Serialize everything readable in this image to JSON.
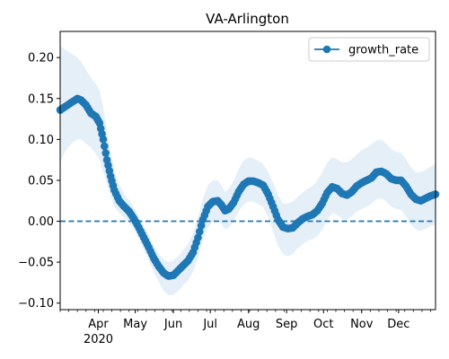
{
  "chart_data": {
    "type": "line",
    "title": "VA-Arlington",
    "xlabel": "",
    "ylabel": "",
    "x_range": [
      "2020-03-01",
      "2020-12-31"
    ],
    "ylim": [
      -0.108,
      0.232
    ],
    "y_ticks": [
      -0.1,
      -0.05,
      0.0,
      0.05,
      0.1,
      0.15,
      0.2
    ],
    "y_tick_labels": [
      "−0.10",
      "−0.05",
      "0.00",
      "0.05",
      "0.10",
      "0.15",
      "0.20"
    ],
    "x_ticks": [
      {
        "date": "2020-04-01",
        "label": "Apr"
      },
      {
        "date": "2020-05-01",
        "label": "May"
      },
      {
        "date": "2020-06-01",
        "label": "Jun"
      },
      {
        "date": "2020-07-01",
        "label": "Jul"
      },
      {
        "date": "2020-08-01",
        "label": "Aug"
      },
      {
        "date": "2020-09-01",
        "label": "Sep"
      },
      {
        "date": "2020-10-01",
        "label": "Oct"
      },
      {
        "date": "2020-11-01",
        "label": "Nov"
      },
      {
        "date": "2020-12-01",
        "label": "Dec"
      }
    ],
    "x_year_label": "2020",
    "grid": false,
    "legend_position": "top-right",
    "reference_line": {
      "y": 0.0,
      "style": "dashed"
    },
    "series": [
      {
        "name": "growth_rate",
        "color": "#1f77b4",
        "band_color": "#dce9f6",
        "marker": "circle",
        "points": [
          {
            "x": "2020-03-01",
            "y": 0.136,
            "lo": 0.072,
            "hi": 0.215
          },
          {
            "x": "2020-03-05",
            "y": 0.14,
            "lo": 0.085,
            "hi": 0.21
          },
          {
            "x": "2020-03-10",
            "y": 0.145,
            "lo": 0.095,
            "hi": 0.205
          },
          {
            "x": "2020-03-15",
            "y": 0.15,
            "lo": 0.1,
            "hi": 0.2
          },
          {
            "x": "2020-03-18",
            "y": 0.148,
            "lo": 0.1,
            "hi": 0.195
          },
          {
            "x": "2020-03-22",
            "y": 0.142,
            "lo": 0.095,
            "hi": 0.185
          },
          {
            "x": "2020-03-26",
            "y": 0.132,
            "lo": 0.09,
            "hi": 0.175
          },
          {
            "x": "2020-03-30",
            "y": 0.128,
            "lo": 0.082,
            "hi": 0.168
          },
          {
            "x": "2020-04-02",
            "y": 0.12,
            "lo": 0.075,
            "hi": 0.16
          },
          {
            "x": "2020-04-05",
            "y": 0.1,
            "lo": 0.06,
            "hi": 0.14
          },
          {
            "x": "2020-04-08",
            "y": 0.075,
            "lo": 0.045,
            "hi": 0.11
          },
          {
            "x": "2020-04-11",
            "y": 0.055,
            "lo": 0.03,
            "hi": 0.085
          },
          {
            "x": "2020-04-14",
            "y": 0.038,
            "lo": 0.018,
            "hi": 0.062
          },
          {
            "x": "2020-04-18",
            "y": 0.025,
            "lo": 0.01,
            "hi": 0.045
          },
          {
            "x": "2020-04-22",
            "y": 0.018,
            "lo": 0.004,
            "hi": 0.034
          },
          {
            "x": "2020-04-26",
            "y": 0.012,
            "lo": -0.002,
            "hi": 0.026
          },
          {
            "x": "2020-04-30",
            "y": 0.003,
            "lo": -0.01,
            "hi": 0.017
          },
          {
            "x": "2020-05-04",
            "y": -0.008,
            "lo": -0.022,
            "hi": 0.006
          },
          {
            "x": "2020-05-08",
            "y": -0.02,
            "lo": -0.035,
            "hi": -0.006
          },
          {
            "x": "2020-05-12",
            "y": -0.032,
            "lo": -0.048,
            "hi": -0.017
          },
          {
            "x": "2020-05-16",
            "y": -0.045,
            "lo": -0.062,
            "hi": -0.03
          },
          {
            "x": "2020-05-20",
            "y": -0.055,
            "lo": -0.074,
            "hi": -0.04
          },
          {
            "x": "2020-05-24",
            "y": -0.063,
            "lo": -0.085,
            "hi": -0.047
          },
          {
            "x": "2020-05-28",
            "y": -0.067,
            "lo": -0.09,
            "hi": -0.05
          },
          {
            "x": "2020-06-01",
            "y": -0.066,
            "lo": -0.09,
            "hi": -0.048
          },
          {
            "x": "2020-06-05",
            "y": -0.06,
            "lo": -0.085,
            "hi": -0.042
          },
          {
            "x": "2020-06-09",
            "y": -0.054,
            "lo": -0.078,
            "hi": -0.035
          },
          {
            "x": "2020-06-13",
            "y": -0.048,
            "lo": -0.072,
            "hi": -0.027
          },
          {
            "x": "2020-06-17",
            "y": -0.038,
            "lo": -0.062,
            "hi": -0.015
          },
          {
            "x": "2020-06-21",
            "y": -0.02,
            "lo": -0.045,
            "hi": 0.005
          },
          {
            "x": "2020-06-25",
            "y": 0.002,
            "lo": -0.023,
            "hi": 0.028
          },
          {
            "x": "2020-06-29",
            "y": 0.018,
            "lo": -0.008,
            "hi": 0.044
          },
          {
            "x": "2020-07-03",
            "y": 0.024,
            "lo": 0.0,
            "hi": 0.05
          },
          {
            "x": "2020-07-07",
            "y": 0.025,
            "lo": 0.002,
            "hi": 0.05
          },
          {
            "x": "2020-07-10",
            "y": 0.02,
            "lo": -0.003,
            "hi": 0.044
          },
          {
            "x": "2020-07-13",
            "y": 0.013,
            "lo": -0.01,
            "hi": 0.036
          },
          {
            "x": "2020-07-16",
            "y": 0.015,
            "lo": -0.008,
            "hi": 0.04
          },
          {
            "x": "2020-07-20",
            "y": 0.023,
            "lo": 0.0,
            "hi": 0.05
          },
          {
            "x": "2020-07-24",
            "y": 0.036,
            "lo": 0.012,
            "hi": 0.064
          },
          {
            "x": "2020-07-28",
            "y": 0.045,
            "lo": 0.02,
            "hi": 0.074
          },
          {
            "x": "2020-08-01",
            "y": 0.049,
            "lo": 0.024,
            "hi": 0.078
          },
          {
            "x": "2020-08-05",
            "y": 0.049,
            "lo": 0.024,
            "hi": 0.077
          },
          {
            "x": "2020-08-09",
            "y": 0.047,
            "lo": 0.021,
            "hi": 0.074
          },
          {
            "x": "2020-08-13",
            "y": 0.044,
            "lo": 0.017,
            "hi": 0.07
          },
          {
            "x": "2020-08-17",
            "y": 0.033,
            "lo": 0.005,
            "hi": 0.06
          },
          {
            "x": "2020-08-21",
            "y": 0.018,
            "lo": -0.012,
            "hi": 0.047
          },
          {
            "x": "2020-08-25",
            "y": 0.002,
            "lo": -0.03,
            "hi": 0.032
          },
          {
            "x": "2020-08-29",
            "y": -0.007,
            "lo": -0.04,
            "hi": 0.022
          },
          {
            "x": "2020-09-02",
            "y": -0.009,
            "lo": -0.043,
            "hi": 0.022
          },
          {
            "x": "2020-09-06",
            "y": -0.008,
            "lo": -0.04,
            "hi": 0.024
          },
          {
            "x": "2020-09-10",
            "y": -0.002,
            "lo": -0.033,
            "hi": 0.03
          },
          {
            "x": "2020-09-14",
            "y": 0.003,
            "lo": -0.028,
            "hi": 0.035
          },
          {
            "x": "2020-09-18",
            "y": 0.006,
            "lo": -0.024,
            "hi": 0.04
          },
          {
            "x": "2020-09-22",
            "y": 0.008,
            "lo": -0.022,
            "hi": 0.043
          },
          {
            "x": "2020-09-26",
            "y": 0.013,
            "lo": -0.018,
            "hi": 0.05
          },
          {
            "x": "2020-09-30",
            "y": 0.022,
            "lo": -0.01,
            "hi": 0.06
          },
          {
            "x": "2020-10-04",
            "y": 0.035,
            "lo": 0.002,
            "hi": 0.072
          },
          {
            "x": "2020-10-08",
            "y": 0.042,
            "lo": 0.01,
            "hi": 0.078
          },
          {
            "x": "2020-10-12",
            "y": 0.04,
            "lo": 0.008,
            "hi": 0.076
          },
          {
            "x": "2020-10-16",
            "y": 0.034,
            "lo": 0.003,
            "hi": 0.072
          },
          {
            "x": "2020-10-20",
            "y": 0.032,
            "lo": 0.002,
            "hi": 0.072
          },
          {
            "x": "2020-10-24",
            "y": 0.036,
            "lo": 0.006,
            "hi": 0.076
          },
          {
            "x": "2020-10-28",
            "y": 0.043,
            "lo": 0.012,
            "hi": 0.082
          },
          {
            "x": "2020-11-01",
            "y": 0.047,
            "lo": 0.015,
            "hi": 0.087
          },
          {
            "x": "2020-11-05",
            "y": 0.05,
            "lo": 0.018,
            "hi": 0.09
          },
          {
            "x": "2020-11-09",
            "y": 0.053,
            "lo": 0.021,
            "hi": 0.094
          },
          {
            "x": "2020-11-13",
            "y": 0.06,
            "lo": 0.027,
            "hi": 0.099
          },
          {
            "x": "2020-11-17",
            "y": 0.061,
            "lo": 0.028,
            "hi": 0.1
          },
          {
            "x": "2020-11-21",
            "y": 0.058,
            "lo": 0.024,
            "hi": 0.095
          },
          {
            "x": "2020-11-25",
            "y": 0.052,
            "lo": 0.018,
            "hi": 0.088
          },
          {
            "x": "2020-11-29",
            "y": 0.05,
            "lo": 0.015,
            "hi": 0.085
          },
          {
            "x": "2020-12-03",
            "y": 0.05,
            "lo": 0.014,
            "hi": 0.084
          },
          {
            "x": "2020-12-07",
            "y": 0.043,
            "lo": 0.006,
            "hi": 0.076
          },
          {
            "x": "2020-12-11",
            "y": 0.033,
            "lo": -0.004,
            "hi": 0.066
          },
          {
            "x": "2020-12-15",
            "y": 0.027,
            "lo": -0.01,
            "hi": 0.06
          },
          {
            "x": "2020-12-19",
            "y": 0.025,
            "lo": -0.012,
            "hi": 0.06
          },
          {
            "x": "2020-12-23",
            "y": 0.028,
            "lo": -0.009,
            "hi": 0.063
          },
          {
            "x": "2020-12-27",
            "y": 0.031,
            "lo": -0.006,
            "hi": 0.067
          },
          {
            "x": "2020-12-31",
            "y": 0.033,
            "lo": -0.004,
            "hi": 0.07
          }
        ]
      }
    ]
  }
}
